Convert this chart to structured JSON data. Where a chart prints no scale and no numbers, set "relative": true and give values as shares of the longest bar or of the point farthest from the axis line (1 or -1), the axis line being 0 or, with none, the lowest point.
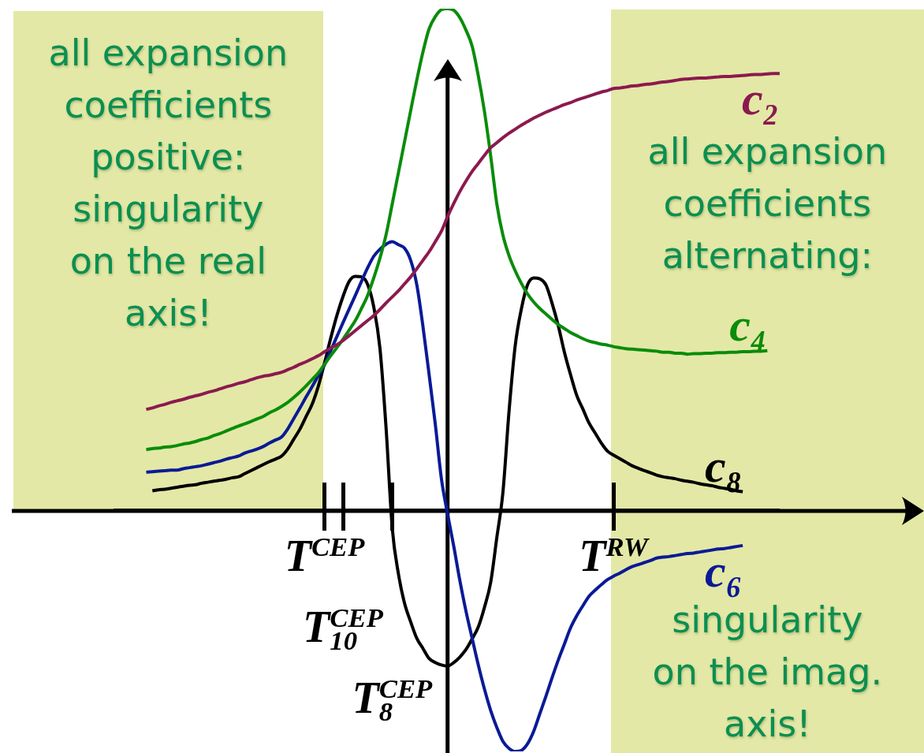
{
  "chart_data": {
    "type": "line",
    "relative": true,
    "categories": [
      null,
      null,
      null,
      null,
      null,
      null,
      null,
      null,
      null,
      null,
      null,
      null,
      null,
      null,
      null,
      null,
      null,
      null,
      null,
      null,
      null,
      null,
      null,
      null,
      null,
      null,
      null,
      null,
      null,
      null,
      null,
      null,
      null,
      null,
      "T$^{CEP}$",
      null,
      null,
      "T$_{10}$$^{CEP}$",
      null,
      null,
      null,
      null,
      null,
      null,
      null,
      "T$_{8}$$^{CEP}$",
      null,
      null,
      null,
      null,
      null,
      null,
      null,
      null,
      null,
      null,
      null,
      null,
      null,
      null,
      null,
      null,
      null,
      null,
      null,
      null,
      null,
      null,
      null,
      null,
      null,
      null,
      null,
      null,
      null,
      null,
      null,
      null,
      null,
      null,
      null,
      "T$^{RW}$",
      null,
      null,
      null,
      null,
      null,
      null,
      null,
      null,
      null,
      null,
      null,
      null,
      null,
      null,
      null,
      null,
      null,
      null,
      null,
      null,
      null,
      null,
      null,
      null,
      null,
      null,
      null
    ],
    "series": [
      {
        "name": "c₂",
        "color": "#8b1a4f",
        "values": [
          null,
          null,
          null,
          null,
          null,
          0.202,
          0.205,
          0.209,
          0.212,
          0.216,
          0.219,
          0.222,
          0.226,
          0.229,
          0.232,
          0.236,
          0.239,
          0.243,
          0.247,
          0.25,
          0.254,
          0.257,
          0.261,
          0.265,
          0.268,
          0.27,
          0.273,
          0.276,
          0.281,
          0.286,
          0.292,
          0.297,
          0.303,
          0.309,
          0.317,
          0.324,
          0.331,
          0.339,
          0.349,
          0.359,
          0.369,
          0.379,
          0.389,
          0.401,
          0.414,
          0.426,
          0.438,
          0.452,
          0.466,
          0.482,
          0.499,
          0.516,
          0.536,
          0.557,
          0.586,
          0.612,
          0.636,
          0.657,
          0.676,
          0.692,
          0.708,
          0.723,
          0.733,
          0.743,
          0.752,
          0.76,
          0.768,
          0.775,
          0.782,
          0.788,
          0.794,
          0.799,
          0.804,
          0.809,
          0.813,
          0.818,
          0.822,
          0.826,
          0.83,
          0.834,
          0.837,
          0.841,
          0.842,
          0.844,
          0.846,
          0.847,
          0.849,
          0.85,
          0.852,
          0.854,
          0.855,
          0.857,
          0.859,
          0.86,
          0.861,
          0.862,
          0.862,
          0.863,
          0.864,
          0.865,
          0.865,
          0.866,
          0.867,
          0.868,
          0.869,
          0.869,
          0.87,
          0.871,
          0.871
        ]
      },
      {
        "name": "c₄",
        "color": "#0a8c0a",
        "values": [
          null,
          null,
          null,
          null,
          null,
          0.122,
          0.124,
          0.125,
          0.127,
          0.128,
          0.13,
          0.133,
          0.135,
          0.138,
          0.142,
          0.145,
          0.15,
          0.154,
          0.159,
          0.164,
          0.169,
          0.173,
          0.178,
          0.183,
          0.188,
          0.195,
          0.201,
          0.208,
          0.216,
          0.226,
          0.237,
          0.249,
          0.262,
          0.275,
          0.292,
          0.309,
          0.325,
          0.342,
          0.36,
          0.379,
          0.403,
          0.429,
          0.464,
          0.503,
          0.55,
          0.611,
          0.673,
          0.735,
          0.797,
          0.858,
          0.914,
          0.96,
          0.984,
          0.998,
          1.0,
          0.997,
          0.982,
          0.957,
          0.925,
          0.866,
          0.795,
          0.708,
          0.612,
          0.549,
          0.508,
          0.478,
          0.453,
          0.432,
          0.416,
          0.403,
          0.392,
          0.381,
          0.371,
          0.363,
          0.355,
          0.349,
          0.343,
          0.338,
          0.335,
          0.332,
          0.33,
          0.327,
          0.325,
          0.323,
          0.322,
          0.321,
          0.32,
          0.319,
          0.318,
          0.316,
          0.316,
          0.314,
          0.314,
          0.312,
          0.313,
          0.313,
          0.314,
          0.314,
          0.315,
          0.315,
          0.316,
          0.316,
          0.317,
          0.317,
          0.318,
          0.318,
          0.319,
          null,
          null
        ]
      },
      {
        "name": "c₆",
        "color": "#0a1a96",
        "values": [
          null,
          null,
          null,
          null,
          null,
          0.077,
          0.078,
          0.079,
          0.08,
          0.081,
          0.081,
          0.084,
          0.086,
          0.088,
          0.09,
          0.093,
          0.096,
          0.099,
          0.103,
          0.106,
          0.109,
          0.115,
          0.119,
          0.123,
          0.128,
          0.135,
          0.141,
          0.147,
          0.163,
          0.184,
          0.205,
          0.227,
          0.248,
          0.27,
          0.291,
          0.319,
          0.347,
          0.375,
          0.402,
          0.429,
          0.457,
          0.484,
          0.507,
          0.521,
          0.531,
          0.536,
          0.53,
          0.523,
          0.499,
          0.45,
          0.367,
          0.271,
          0.173,
          0.064,
          -0.006,
          -0.07,
          -0.139,
          -0.2,
          -0.254,
          -0.307,
          -0.355,
          -0.397,
          -0.431,
          -0.459,
          -0.473,
          -0.479,
          -0.477,
          -0.464,
          -0.439,
          -0.404,
          -0.369,
          -0.332,
          -0.297,
          -0.265,
          -0.233,
          -0.209,
          -0.189,
          -0.17,
          -0.158,
          -0.147,
          -0.137,
          -0.13,
          -0.124,
          -0.117,
          -0.111,
          -0.107,
          -0.103,
          -0.099,
          -0.094,
          -0.092,
          -0.091,
          -0.089,
          -0.087,
          -0.085,
          -0.084,
          -0.082,
          -0.08,
          -0.078,
          -0.076,
          -0.075,
          -0.073,
          -0.071,
          -0.069,
          null,
          null,
          null,
          null,
          null,
          null
        ]
      },
      {
        "name": "c₈",
        "color": "#000000",
        "values": [
          null,
          null,
          null,
          null,
          null,
          null,
          0.04,
          0.042,
          0.043,
          0.045,
          0.047,
          0.049,
          0.051,
          0.052,
          0.055,
          0.057,
          0.059,
          0.061,
          0.063,
          0.066,
          0.068,
          0.074,
          0.08,
          0.086,
          0.092,
          0.098,
          0.103,
          0.109,
          0.123,
          0.143,
          0.163,
          0.188,
          0.213,
          0.249,
          0.295,
          0.344,
          0.389,
          0.427,
          0.457,
          0.467,
          0.466,
          0.451,
          0.406,
          0.324,
          0.165,
          -0.034,
          -0.125,
          -0.184,
          -0.221,
          -0.254,
          -0.274,
          -0.294,
          -0.302,
          -0.307,
          -0.309,
          -0.302,
          -0.291,
          -0.276,
          -0.255,
          -0.231,
          -0.192,
          -0.143,
          -0.054,
          0.037,
          0.199,
          0.329,
          0.402,
          0.45,
          0.464,
          0.462,
          0.45,
          0.413,
          0.369,
          0.316,
          0.271,
          0.23,
          0.203,
          0.175,
          0.155,
          0.135,
          0.119,
          0.111,
          0.104,
          0.097,
          0.09,
          0.085,
          0.08,
          0.076,
          0.071,
          0.068,
          0.066,
          0.064,
          0.061,
          0.059,
          0.057,
          0.054,
          0.052,
          0.05,
          0.047,
          0.045,
          0.043,
          0.04,
          0.038,
          null,
          null,
          null,
          null,
          null,
          null
        ]
      }
    ],
    "annotations": [
      "all expansion\ncoefficients\npositive:\nsingularity\non the real\naxis!",
      "all expansion\ncoefficients\nalternating:",
      "singularity\non the imag.\naxis!"
    ]
  }
}
